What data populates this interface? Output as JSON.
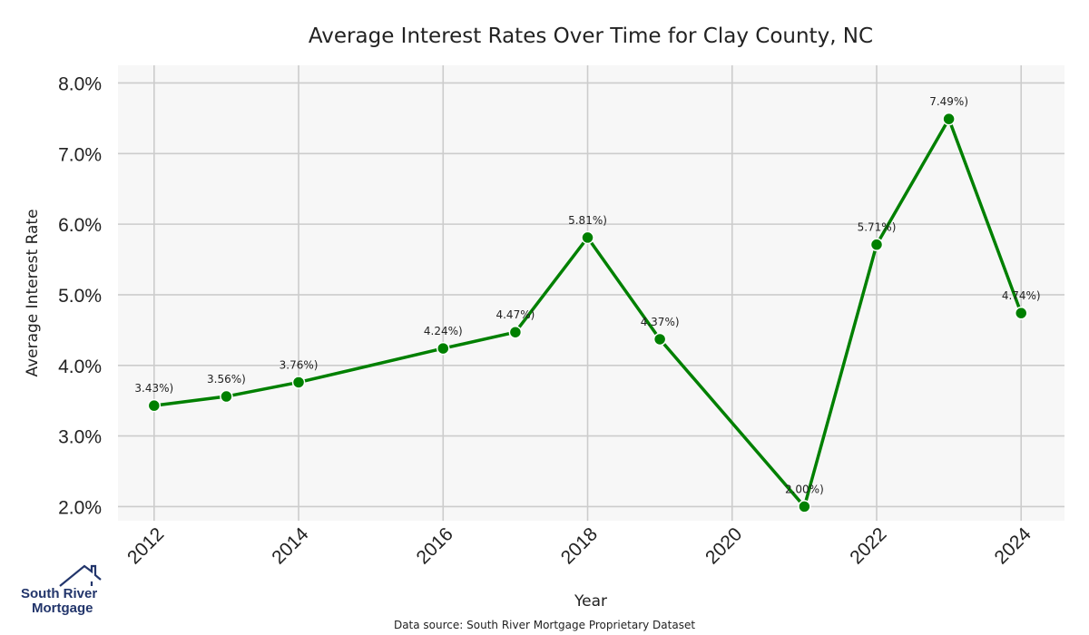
{
  "chart_data": {
    "type": "line",
    "title": "Average Interest Rates Over Time for Clay County, NC",
    "xlabel": "Year",
    "ylabel": "Average Interest Rate",
    "x": [
      2012,
      2013,
      2014,
      2016,
      2017,
      2018,
      2019,
      2021,
      2022,
      2023,
      2024
    ],
    "series": [
      {
        "values": [
          3.43,
          3.56,
          3.76,
          4.24,
          4.47,
          5.81,
          4.37,
          2.0,
          5.71,
          7.49,
          4.74
        ],
        "labels": [
          "3.43%)",
          "3.56%)",
          "3.76%)",
          "4.24%)",
          "4.47%)",
          "5.81%)",
          "4.37%)",
          "2.00%)",
          "5.71%)",
          "7.49%)",
          "4.74%)"
        ],
        "color": "#008000"
      }
    ],
    "xlim": [
      2011.5,
      2024.6
    ],
    "ylim": [
      1.8,
      8.25
    ],
    "xticks": [
      2012,
      2014,
      2016,
      2018,
      2020,
      2022,
      2024
    ],
    "xtick_labels": [
      "2012",
      "2014",
      "2016",
      "2018",
      "2020",
      "2022",
      "2024"
    ],
    "yticks": [
      2.0,
      3.0,
      4.0,
      5.0,
      6.0,
      7.0,
      8.0
    ],
    "ytick_labels": [
      "2.0%",
      "3.0%",
      "4.0%",
      "5.0%",
      "6.0%",
      "7.0%",
      "8.0%"
    ],
    "grid": true,
    "plot_background": "#f7f7f7",
    "grid_color": "#cccccc",
    "source_note": "Data source: South River Mortgage Proprietary Dataset"
  },
  "logo": {
    "line1": "South River",
    "line2": "Mortgage",
    "color": "#22356b"
  }
}
